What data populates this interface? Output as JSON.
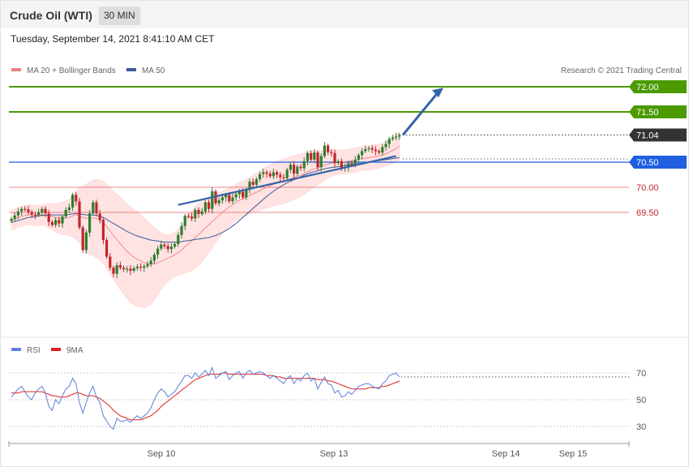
{
  "header": {
    "title": "Crude Oil (WTI)",
    "timeframe": "30 MIN",
    "timestamp": "Tuesday, September 14, 2021 8:41:10 AM CET"
  },
  "legend": {
    "ma20": "MA 20 + Bollinger Bands",
    "ma50": "MA 50",
    "rsi": "RSI",
    "ma9": "9MA",
    "copyright": "Research © 2021 Trading Central"
  },
  "colors": {
    "ma20": "#f08080",
    "ma50": "#3a5a9a",
    "bollinger_fill": "#ffe3e3",
    "candle_up": "#2f7d2f",
    "candle_down": "#c0262d",
    "target_green": "#4b9a00",
    "pivot_blue": "#1f5fe0",
    "support_red": "#e06060",
    "last_price": "#333333",
    "trend_arrow": "#3563a8",
    "rsi": "#5c7fd8",
    "rsi_ma": "#e02020"
  },
  "chart_data": [
    {
      "type": "candlestick",
      "title": "Crude Oil (WTI)",
      "ylim": [
        68.0,
        72.2
      ],
      "x_labels": [
        "Sep 10",
        "Sep 13",
        "Sep 14",
        "Sep 15"
      ],
      "levels": [
        {
          "name": "target-2",
          "value": 72.0,
          "label": "72.00",
          "style": "resistance"
        },
        {
          "name": "target-1",
          "value": 71.5,
          "label": "71.50",
          "style": "resistance"
        },
        {
          "name": "last",
          "value": 71.04,
          "label": "71.04",
          "style": "last"
        },
        {
          "name": "pivot",
          "value": 70.5,
          "label": "70.50",
          "style": "pivot"
        },
        {
          "name": "support-1",
          "value": 70.0,
          "label": "70.00",
          "style": "support"
        },
        {
          "name": "support-2",
          "value": 69.5,
          "label": "69.50",
          "style": "support"
        }
      ],
      "closes": [
        69.37,
        69.44,
        69.52,
        69.57,
        69.56,
        69.51,
        69.46,
        69.45,
        69.5,
        69.57,
        69.48,
        69.31,
        69.25,
        69.35,
        69.28,
        69.42,
        69.55,
        69.6,
        69.85,
        69.72,
        69.2,
        68.75,
        69.1,
        69.48,
        69.7,
        69.48,
        69.35,
        68.95,
        68.62,
        68.4,
        68.28,
        68.45,
        68.4,
        68.37,
        68.38,
        68.34,
        68.39,
        68.42,
        68.4,
        68.43,
        68.47,
        68.54,
        68.66,
        68.78,
        68.86,
        68.83,
        68.77,
        68.82,
        68.87,
        69.05,
        69.23,
        69.43,
        69.42,
        69.38,
        69.55,
        69.47,
        69.52,
        69.7,
        69.57,
        69.92,
        69.68,
        69.74,
        69.8,
        69.85,
        69.72,
        69.8,
        69.86,
        69.91,
        69.8,
        69.95,
        70.11,
        70.05,
        70.16,
        70.26,
        70.3,
        70.27,
        70.22,
        70.3,
        70.25,
        70.2,
        70.18,
        70.35,
        70.45,
        70.27,
        70.41,
        70.38,
        70.52,
        70.68,
        70.55,
        70.69,
        70.4,
        70.62,
        70.83,
        70.7,
        70.68,
        70.48,
        70.52,
        70.38,
        70.4,
        70.48,
        70.45,
        70.55,
        70.64,
        70.72,
        70.76,
        70.78,
        70.75,
        70.72,
        70.69,
        70.8,
        70.86,
        70.96,
        70.99,
        71.01,
        71.04
      ],
      "ma20": [
        69.35,
        69.37,
        69.4,
        69.42,
        69.44,
        69.45,
        69.45,
        69.44,
        69.44,
        69.45,
        69.45,
        69.43,
        69.41,
        69.4,
        69.38,
        69.38,
        69.39,
        69.4,
        69.43,
        69.45,
        69.44,
        69.4,
        69.38,
        69.38,
        69.39,
        69.38,
        69.35,
        69.3,
        69.22,
        69.13,
        69.04,
        68.96,
        68.88,
        68.8,
        68.72,
        68.66,
        68.61,
        68.57,
        68.54,
        68.5,
        68.48,
        68.47,
        68.48,
        68.5,
        68.53,
        68.56,
        68.59,
        68.62,
        68.66,
        68.7,
        68.75,
        68.82,
        68.88,
        68.94,
        69.0,
        69.06,
        69.12,
        69.19,
        69.25,
        69.32,
        69.38,
        69.44,
        69.5,
        69.56,
        69.61,
        69.65,
        69.7,
        69.74,
        69.77,
        69.8,
        69.84,
        69.87,
        69.9,
        69.93,
        69.97,
        70.0,
        70.03,
        70.06,
        70.08,
        70.1,
        70.12,
        70.14,
        70.17,
        70.19,
        70.22,
        70.24,
        70.27,
        70.31,
        70.34,
        70.37,
        70.39,
        70.41,
        70.44,
        70.46,
        70.48,
        70.49,
        70.5,
        70.5,
        70.51,
        70.52,
        70.53,
        70.54,
        70.56,
        70.57,
        70.58,
        70.59,
        70.6,
        70.61,
        70.62,
        70.64,
        70.67,
        70.7,
        70.73,
        70.77,
        70.82
      ],
      "ma50": [
        69.3,
        69.32,
        69.34,
        69.36,
        69.38,
        69.4,
        69.41,
        69.42,
        69.43,
        69.44,
        69.44,
        69.45,
        69.45,
        69.45,
        69.45,
        69.45,
        69.45,
        69.46,
        69.47,
        69.48,
        69.47,
        69.46,
        69.45,
        69.45,
        69.45,
        69.44,
        69.42,
        69.4,
        69.36,
        69.32,
        69.28,
        69.24,
        69.2,
        69.16,
        69.12,
        69.09,
        69.06,
        69.03,
        69.01,
        68.99,
        68.97,
        68.95,
        68.94,
        68.93,
        68.92,
        68.91,
        68.91,
        68.91,
        68.91,
        68.91,
        68.92,
        68.93,
        68.94,
        68.95,
        68.96,
        68.97,
        68.98,
        68.99,
        69.0,
        69.02,
        69.04,
        69.07,
        69.1,
        69.14,
        69.18,
        69.23,
        69.28,
        69.34,
        69.4,
        69.46,
        69.52,
        69.58,
        69.64,
        69.7,
        69.76,
        69.82,
        69.87,
        69.92,
        69.97,
        70.01,
        70.05,
        70.09,
        70.12,
        70.15,
        70.18,
        70.21,
        70.24,
        70.27,
        70.29,
        70.31,
        70.33,
        70.35,
        70.37,
        70.38,
        70.39,
        70.4,
        70.41,
        70.42,
        70.43,
        70.44,
        70.45,
        70.46,
        70.47,
        70.48,
        70.49,
        70.5,
        70.51,
        70.52,
        70.53,
        70.54,
        70.55,
        70.56,
        70.57,
        70.58,
        70.59
      ],
      "bollinger_width": [
        0.2,
        0.2,
        0.2,
        0.2,
        0.2,
        0.2,
        0.2,
        0.2,
        0.2,
        0.2,
        0.22,
        0.24,
        0.26,
        0.28,
        0.3,
        0.32,
        0.34,
        0.36,
        0.42,
        0.48,
        0.55,
        0.62,
        0.68,
        0.72,
        0.75,
        0.78,
        0.8,
        0.82,
        0.84,
        0.86,
        0.88,
        0.9,
        0.92,
        0.93,
        0.94,
        0.95,
        0.95,
        0.94,
        0.92,
        0.9,
        0.85,
        0.8,
        0.72,
        0.64,
        0.56,
        0.5,
        0.46,
        0.44,
        0.44,
        0.46,
        0.48,
        0.52,
        0.56,
        0.6,
        0.62,
        0.62,
        0.6,
        0.58,
        0.55,
        0.52,
        0.48,
        0.45,
        0.42,
        0.4,
        0.38,
        0.37,
        0.36,
        0.36,
        0.36,
        0.36,
        0.36,
        0.37,
        0.38,
        0.39,
        0.4,
        0.41,
        0.42,
        0.43,
        0.44,
        0.44,
        0.44,
        0.44,
        0.44,
        0.44,
        0.43,
        0.42,
        0.41,
        0.4,
        0.38,
        0.36,
        0.34,
        0.32,
        0.3,
        0.28,
        0.26,
        0.25,
        0.24,
        0.24,
        0.24,
        0.24,
        0.24,
        0.24,
        0.24,
        0.24,
        0.24,
        0.24,
        0.24,
        0.24,
        0.24,
        0.24,
        0.24,
        0.25,
        0.26,
        0.27,
        0.28
      ],
      "trendline": {
        "from": [
          49,
          69.65
        ],
        "to": [
          113,
          70.62
        ]
      },
      "arrow": {
        "from": [
          115,
          71.04
        ],
        "to": [
          125,
          71.98
        ]
      }
    },
    {
      "type": "line",
      "title": "RSI",
      "ylim": [
        20,
        80
      ],
      "y_ticks": [
        30,
        50,
        70
      ],
      "series": [
        {
          "name": "RSI",
          "values": [
            52,
            55,
            58,
            60,
            56,
            52,
            50,
            55,
            58,
            60,
            55,
            45,
            42,
            50,
            47,
            53,
            58,
            60,
            66,
            62,
            48,
            40,
            48,
            55,
            60,
            52,
            48,
            38,
            34,
            30,
            28,
            36,
            34,
            34,
            35,
            33,
            36,
            38,
            36,
            38,
            40,
            44,
            50,
            55,
            58,
            56,
            52,
            54,
            56,
            60,
            64,
            68,
            68,
            66,
            70,
            67,
            69,
            72,
            68,
            74,
            66,
            68,
            70,
            71,
            65,
            68,
            70,
            71,
            66,
            70,
            72,
            69,
            70,
            71,
            70,
            68,
            66,
            68,
            66,
            64,
            62,
            66,
            68,
            62,
            66,
            64,
            68,
            70,
            64,
            66,
            58,
            63,
            67,
            62,
            61,
            55,
            57,
            52,
            53,
            56,
            54,
            57,
            60,
            61,
            62,
            62,
            60,
            59,
            58,
            62,
            64,
            68,
            69,
            70,
            67
          ]
        },
        {
          "name": "9MA",
          "values": [
            55,
            55,
            55,
            56,
            56,
            56,
            56,
            56,
            56,
            56,
            55,
            54,
            53,
            53,
            52,
            52,
            52,
            53,
            54,
            55,
            55,
            54,
            53,
            53,
            53,
            52,
            51,
            49,
            47,
            45,
            42,
            40,
            38,
            37,
            36,
            35,
            35,
            35,
            35,
            36,
            37,
            38,
            40,
            42,
            45,
            47,
            49,
            51,
            53,
            55,
            57,
            59,
            61,
            63,
            65,
            66,
            67,
            68,
            69,
            69,
            69,
            69,
            70,
            70,
            69,
            69,
            69,
            69,
            69,
            69,
            69,
            69,
            69,
            69,
            69,
            68,
            68,
            68,
            67,
            67,
            66,
            66,
            66,
            66,
            66,
            66,
            66,
            66,
            66,
            66,
            65,
            65,
            65,
            64,
            64,
            63,
            62,
            61,
            60,
            59,
            58,
            58,
            58,
            58,
            58,
            59,
            59,
            59,
            59,
            60,
            60,
            61,
            62,
            63,
            64
          ]
        }
      ]
    }
  ]
}
